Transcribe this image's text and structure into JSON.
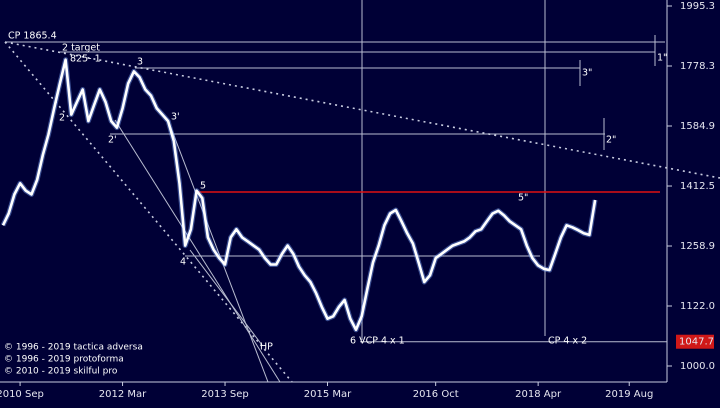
{
  "chart_data": {
    "type": "line",
    "log_scale": true,
    "color": "#ffffff",
    "x": [
      "2010-06",
      "2010-07",
      "2010-08",
      "2010-09",
      "2010-10",
      "2010-11",
      "2010-12",
      "2011-01",
      "2011-02",
      "2011-03",
      "2011-04",
      "2011-05",
      "2011-06",
      "2011-07",
      "2011-08",
      "2011-09",
      "2011-10",
      "2011-11",
      "2011-12",
      "2012-01",
      "2012-02",
      "2012-03",
      "2012-04",
      "2012-05",
      "2012-06",
      "2012-07",
      "2012-08",
      "2012-09",
      "2012-10",
      "2012-11",
      "2012-12",
      "2013-01",
      "2013-02",
      "2013-03",
      "2013-04",
      "2013-05",
      "2013-06",
      "2013-07",
      "2013-08",
      "2013-09",
      "2013-10",
      "2013-11",
      "2013-12",
      "2014-01",
      "2014-02",
      "2014-03",
      "2014-04",
      "2014-05",
      "2014-06",
      "2014-07",
      "2014-08",
      "2014-09",
      "2014-10",
      "2014-11",
      "2014-12",
      "2015-01",
      "2015-02",
      "2015-03",
      "2015-04",
      "2015-05",
      "2015-06",
      "2015-07",
      "2015-08",
      "2015-09",
      "2015-10",
      "2015-11",
      "2015-12",
      "2016-01",
      "2016-02",
      "2016-03",
      "2016-04",
      "2016-05",
      "2016-06",
      "2016-07",
      "2016-08",
      "2016-09",
      "2016-10",
      "2016-11",
      "2016-12",
      "2017-01",
      "2017-02",
      "2017-03",
      "2017-04",
      "2017-05",
      "2017-06",
      "2017-07",
      "2017-08",
      "2017-09",
      "2017-10",
      "2017-11",
      "2017-12",
      "2018-01",
      "2018-02",
      "2018-03",
      "2018-04",
      "2018-05",
      "2018-06",
      "2018-07",
      "2018-08",
      "2018-09",
      "2018-10",
      "2018-11",
      "2018-12",
      "2019-01",
      "2019-02"
    ],
    "values": [
      1310,
      1340,
      1390,
      1420,
      1400,
      1390,
      1430,
      1500,
      1560,
      1640,
      1720,
      1800,
      1620,
      1660,
      1700,
      1600,
      1650,
      1700,
      1660,
      1600,
      1580,
      1640,
      1720,
      1760,
      1740,
      1700,
      1680,
      1640,
      1620,
      1600,
      1540,
      1420,
      1260,
      1300,
      1400,
      1380,
      1280,
      1250,
      1230,
      1215,
      1280,
      1300,
      1280,
      1270,
      1260,
      1250,
      1230,
      1215,
      1215,
      1240,
      1260,
      1240,
      1210,
      1190,
      1175,
      1150,
      1120,
      1095,
      1100,
      1120,
      1135,
      1095,
      1072,
      1100,
      1160,
      1220,
      1260,
      1310,
      1340,
      1349,
      1320,
      1290,
      1265,
      1220,
      1175,
      1190,
      1230,
      1240,
      1250,
      1260,
      1265,
      1270,
      1280,
      1295,
      1300,
      1320,
      1340,
      1347,
      1335,
      1320,
      1310,
      1300,
      1260,
      1230,
      1213,
      1205,
      1202,
      1240,
      1280,
      1310,
      1305,
      1298,
      1290,
      1286,
      1375
    ],
    "xlim": [
      "2010-06",
      "2019-12"
    ],
    "xticks": [
      {
        "value": "2010-09",
        "label": "2010 Sep"
      },
      {
        "value": "2012-03",
        "label": "2012 Mar"
      },
      {
        "value": "2013-09",
        "label": "2013 Sep"
      },
      {
        "value": "2015-03",
        "label": "2015 Mar"
      },
      {
        "value": "2016-10",
        "label": "2016 Oct"
      },
      {
        "value": "2018-04",
        "label": "2018 Apr"
      },
      {
        "value": "2019-08",
        "label": "2019 Aug"
      }
    ],
    "ylim": [
      973.5,
      2018.4
    ],
    "yticks": [
      1995.3,
      1778.3,
      1584.9,
      1412.5,
      1258.9,
      {
        "value": 1122,
        "label": "1122.0"
      },
      {
        "value": 1000,
        "label": "1000.0"
      }
    ],
    "last_level": 1047.7,
    "annotations": [
      "CP 1865.4",
      "2 target",
      "825- 1",
      "3",
      "2'",
      "2",
      "3'",
      "5",
      "4",
      "HP",
      "6 VCP 4 x 1",
      "CP 4 x 2",
      "5\"",
      "3\"",
      "2\"",
      "1\""
    ],
    "copyright": [
      "© 1996 - 2019 tactica adversa",
      "© 1996 - 2019 protoforma",
      "© 2010 - 2019 skilful pro"
    ]
  }
}
